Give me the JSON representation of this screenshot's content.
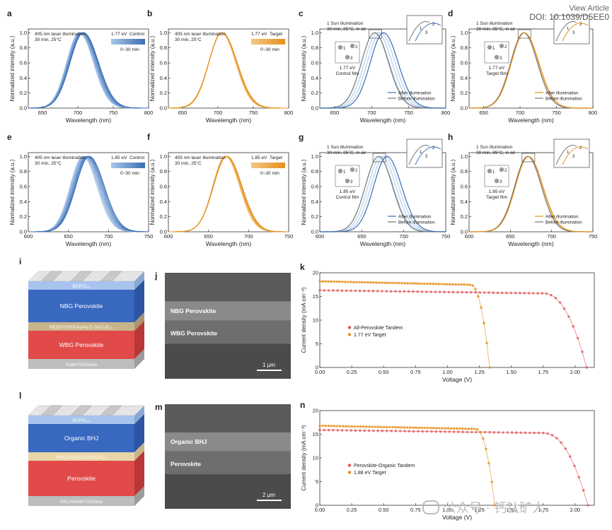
{
  "header": {
    "view_article": "View Article",
    "doi": "DOI: 10.1039/D5EE0"
  },
  "watermark": {
    "text": "公众号 · 钙钛矿人"
  },
  "colors": {
    "blue": "#3a6eb5",
    "blue_light": "#a9c6e8",
    "orange": "#e58f1c",
    "orange_light": "#f5c886",
    "gray": "#777777",
    "red": "#e0575a"
  },
  "pl_panels": [
    {
      "letter": "a",
      "line1": "405 nm laser illumination",
      "line2": "30 min, 25°C",
      "eV": "1.77 eV",
      "tag": "Control",
      "grad": "0~30 min",
      "xlabel": "Wavelength (nm)",
      "ylabel": "Normalized intensity (a.u.)"
    },
    {
      "letter": "b",
      "line1": "405 nm laser illumination",
      "line2": "30 min, 25°C",
      "eV": "1.77 eV",
      "tag": "Target",
      "grad": "0~30 min",
      "xlabel": "Wavelength (nm)",
      "ylabel": "Normalized intensity (a.u.)"
    },
    {
      "letter": "c",
      "line1": "1 Sun illumination",
      "line2": "30 min, 85°C, in air",
      "eV": "1.77 eV",
      "film": "Control film",
      "leg1": "After illumination",
      "leg2": "Before illumination",
      "xlabel": "Wavelength (nm)",
      "ylabel": "Normalized intensity (a.u.)"
    },
    {
      "letter": "d",
      "line1": "1 Sun illumination",
      "line2": "30 min, 85°C, in air",
      "eV": "1.77 eV",
      "film": "Target film",
      "leg1": "After illumination",
      "leg2": "Before illumination",
      "xlabel": "Wavelength (nm)",
      "ylabel": "Normalized intensity (a.u.)"
    },
    {
      "letter": "e",
      "line1": "405 nm laser illumination",
      "line2": "30 min, 25°C",
      "eV": "1.85 eV",
      "tag": "Control",
      "grad": "0~30 min",
      "xlabel": "Wavelength (nm)",
      "ylabel": "Normalized intensity (a.u.)"
    },
    {
      "letter": "f",
      "line1": "405 nm laser illumination",
      "line2": "30 min, 25°C",
      "eV": "1.85 eV",
      "tag": "Target",
      "grad": "0~30 min",
      "xlabel": "Wavelength (nm)",
      "ylabel": "Normalized intensity (a.u.)"
    },
    {
      "letter": "g",
      "line1": "1 Sun illumination",
      "line2": "30 min, 85°C, in air",
      "eV": "1.85 eV",
      "film": "Control film",
      "leg1": "After illumination",
      "leg2": "Before illumination",
      "xlabel": "Wavelength (nm)",
      "ylabel": "Normalized intensity (a.u.)"
    },
    {
      "letter": "h",
      "line1": "1 Sun illumination",
      "line2": "30 min, 85°C, in air",
      "eV": "1.85 eV",
      "film": "Target film",
      "leg1": "After illumination",
      "leg2": "Before illumination",
      "xlabel": "Wavelength (nm)",
      "ylabel": "Normalized intensity (a.u.)"
    }
  ],
  "spot_labels": [
    "1",
    "2",
    "3"
  ],
  "device_i": {
    "letter": "i",
    "electrode_left": "Cu",
    "electrode_right": "Cu",
    "layers": [
      "BCP/C₆₀",
      "NBG Perovskite",
      "PEDOT:PSS/Au/ALD-SnO₂/C₆₀",
      "WBG Perovskite",
      "SAM/ITO/Glass"
    ]
  },
  "device_l": {
    "letter": "l",
    "electrode_left": "Ag",
    "electrode_right": "Ag",
    "layers": [
      "BCP/C₆₀",
      "Organic BHJ",
      "MoOₓ/Au/ALD-SnO₂/C₆₀",
      "Perovskite",
      "NiOₓ/SAM/ITO/Glass"
    ]
  },
  "sem_j": {
    "letter": "j",
    "layer1": "NBG Perovskite",
    "layer2": "WBG Perovskite",
    "scale": "1 μm"
  },
  "sem_m": {
    "letter": "m",
    "layer1": "Organic BHJ",
    "layer2": "Perovskite",
    "scale": "2 μm"
  },
  "chart_data": [
    {
      "type": "line",
      "panel": "a",
      "xlabel": "Wavelength (nm)",
      "ylabel": "Normalized intensity (a.u.)",
      "xlim": [
        630,
        800
      ],
      "ylim": [
        0,
        1.05
      ],
      "xticks": [
        "650",
        "700",
        "750",
        "800"
      ],
      "yticks": [
        "0.0",
        "0.2",
        "0.4",
        "0.6",
        "0.8",
        "1.0"
      ],
      "peak_nm": 705,
      "series": [
        {
          "name": "0~30 min",
          "color_range": [
            "#a9c6e8",
            "#3a6eb5"
          ],
          "peak_shift_nm": [
            702,
            708
          ]
        }
      ]
    },
    {
      "type": "line",
      "panel": "b",
      "xlabel": "Wavelength (nm)",
      "ylabel": "Normalized intensity (a.u.)",
      "xlim": [
        630,
        800
      ],
      "ylim": [
        0,
        1.05
      ],
      "xticks": [
        "650",
        "700",
        "750",
        "800"
      ],
      "yticks": [
        "0.0",
        "0.2",
        "0.4",
        "0.6",
        "0.8",
        "1.0"
      ],
      "peak_nm": 705,
      "series": [
        {
          "name": "0~30 min",
          "color_range": [
            "#f5c886",
            "#e58f1c"
          ],
          "peak_shift_nm": [
            705,
            706
          ]
        }
      ]
    },
    {
      "type": "line",
      "panel": "c",
      "xlabel": "Wavelength (nm)",
      "ylabel": "Normalized intensity (a.u.)",
      "xlim": [
        630,
        800
      ],
      "ylim": [
        0,
        1.05
      ],
      "xticks": [
        "650",
        "700",
        "750",
        "800"
      ],
      "yticks": [
        "0.0",
        "0.2",
        "0.4",
        "0.6",
        "0.8",
        "1.0"
      ],
      "series": [
        {
          "name": "After illumination",
          "peak_nm": 716
        },
        {
          "name": "Before illumination",
          "peak_nm": 704
        }
      ]
    },
    {
      "type": "line",
      "panel": "d",
      "xlabel": "Wavelength (nm)",
      "ylabel": "Normalized intensity (a.u.)",
      "xlim": [
        630,
        800
      ],
      "ylim": [
        0,
        1.05
      ],
      "xticks": [
        "650",
        "700",
        "750",
        "800"
      ],
      "yticks": [
        "0.0",
        "0.2",
        "0.4",
        "0.6",
        "0.8",
        "1.0"
      ],
      "series": [
        {
          "name": "After illumination",
          "peak_nm": 706
        },
        {
          "name": "Before illumination",
          "peak_nm": 705
        }
      ]
    },
    {
      "type": "line",
      "panel": "e",
      "xlabel": "Wavelength (nm)",
      "ylabel": "Normalized intensity (a.u.)",
      "xlim": [
        600,
        750
      ],
      "ylim": [
        0,
        1.05
      ],
      "xticks": [
        "600",
        "650",
        "700",
        "750"
      ],
      "yticks": [
        "0.0",
        "0.2",
        "0.4",
        "0.6",
        "0.8",
        "1.0"
      ],
      "peak_nm": 671,
      "series": [
        {
          "name": "0~30 min",
          "color_range": [
            "#a9c6e8",
            "#3a6eb5"
          ],
          "peak_shift_nm": [
            668,
            676
          ]
        }
      ]
    },
    {
      "type": "line",
      "panel": "f",
      "xlabel": "Wavelength (nm)",
      "ylabel": "Normalized intensity (a.u.)",
      "xlim": [
        600,
        750
      ],
      "ylim": [
        0,
        1.05
      ],
      "xticks": [
        "600",
        "650",
        "700",
        "750"
      ],
      "yticks": [
        "0.0",
        "0.2",
        "0.4",
        "0.6",
        "0.8",
        "1.0"
      ],
      "peak_nm": 672,
      "series": [
        {
          "name": "0~30 min",
          "color_range": [
            "#f5c886",
            "#e58f1c"
          ],
          "peak_shift_nm": [
            671,
            673
          ]
        }
      ]
    },
    {
      "type": "line",
      "panel": "g",
      "xlabel": "Wavelength (nm)",
      "ylabel": "Normalized intensity (a.u.)",
      "xlim": [
        600,
        750
      ],
      "ylim": [
        0,
        1.05
      ],
      "xticks": [
        "600",
        "650",
        "700",
        "750"
      ],
      "yticks": [
        "0.0",
        "0.2",
        "0.4",
        "0.6",
        "0.8",
        "1.0"
      ],
      "series": [
        {
          "name": "After illumination",
          "peak_nm": 680
        },
        {
          "name": "Before illumination",
          "peak_nm": 670
        }
      ]
    },
    {
      "type": "line",
      "panel": "h",
      "xlabel": "Wavelength (nm)",
      "ylabel": "Normalized intensity (a.u.)",
      "xlim": [
        600,
        750
      ],
      "ylim": [
        0,
        1.05
      ],
      "xticks": [
        "600",
        "650",
        "700",
        "750"
      ],
      "yticks": [
        "0.0",
        "0.2",
        "0.4",
        "0.6",
        "0.8",
        "1.0"
      ],
      "series": [
        {
          "name": "After illumination",
          "peak_nm": 672
        },
        {
          "name": "Before illumination",
          "peak_nm": 671
        }
      ]
    },
    {
      "type": "scatter",
      "panel": "k",
      "xlabel": "Voltage (V)",
      "ylabel": "Current density (mA cm⁻²)",
      "xlim": [
        0,
        2.15
      ],
      "ylim": [
        0,
        20
      ],
      "xticks": [
        "0.00",
        "0.25",
        "0.50",
        "0.75",
        "1.00",
        "1.25",
        "1.50",
        "1.75",
        "2.00"
      ],
      "yticks": [
        "0",
        "5",
        "10",
        "15",
        "20"
      ],
      "series": [
        {
          "name": "All-Perovskite Tandem",
          "Jsc": 16.3,
          "Voc": 2.09,
          "knee": 1.75
        },
        {
          "name": "1.77 eV  Target",
          "Jsc": 18.2,
          "Voc": 1.33,
          "knee": 1.18
        }
      ]
    },
    {
      "type": "scatter",
      "panel": "n",
      "xlabel": "Voltage (V)",
      "ylabel": "Current density (mA cm⁻²)",
      "xlim": [
        0,
        2.15
      ],
      "ylim": [
        0,
        20
      ],
      "xticks": [
        "0.00",
        "0.25",
        "0.50",
        "0.75",
        "1.00",
        "1.25",
        "1.50",
        "1.75",
        "2.00"
      ],
      "yticks": [
        "0",
        "5",
        "10",
        "15",
        "20"
      ],
      "series": [
        {
          "name": "Perovskite-Organic Tandem",
          "Jsc": 15.9,
          "Voc": 2.1,
          "knee": 1.75
        },
        {
          "name": "1.88 eV  Target",
          "Jsc": 16.8,
          "Voc": 1.37,
          "knee": 1.22
        }
      ]
    }
  ]
}
